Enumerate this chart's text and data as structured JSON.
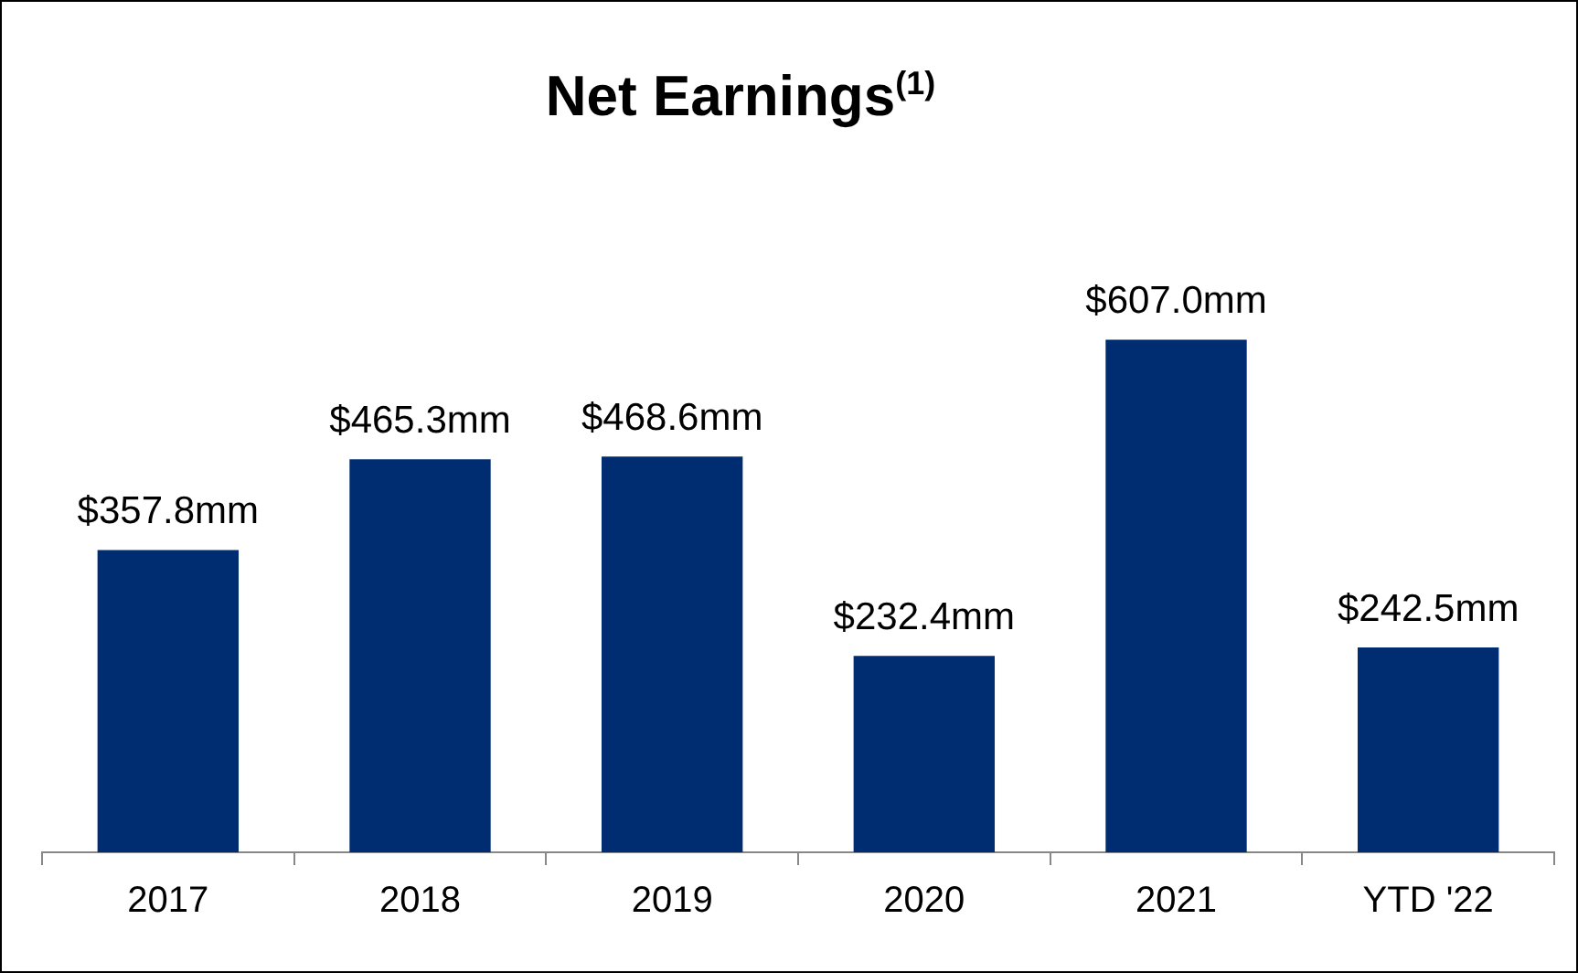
{
  "chart_data": {
    "type": "bar",
    "title": "Net Earnings$^{(1)}$",
    "categories": [
      "2017",
      "2018",
      "2019",
      "2020",
      "2021",
      "YTD '22"
    ],
    "values": [
      357.8,
      465.3,
      468.6,
      232.4,
      607.0,
      242.5
    ],
    "value_labels": [
      "$357.8mm",
      "$465.3mm",
      "$468.6mm",
      "$232.4mm",
      "$607.0mm",
      "$242.5mm"
    ],
    "color": "#002d72",
    "grid": false,
    "legend": false
  }
}
